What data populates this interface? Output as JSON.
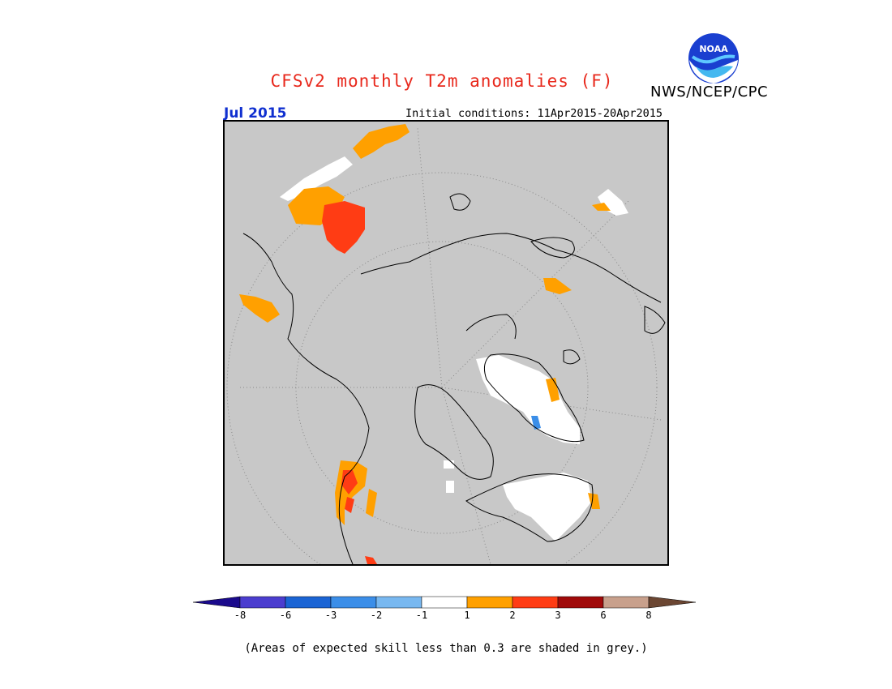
{
  "title": "CFSv2 monthly T2m anomalies (F)",
  "agency": "NWS/NCEP/CPC",
  "logo_text": "NOAA",
  "valid_month": "Jul 2015",
  "initial_conditions": "Initial conditions: 11Apr2015-20Apr2015",
  "footnote": "(Areas of expected skill less than 0.3 are shaded in grey.)",
  "map": {
    "projection": "north-polar-stereographic",
    "background_color": "#c8c8c8",
    "coastline_color": "#000000"
  },
  "legend": {
    "colors": [
      "#1a0a8c",
      "#4b3dcf",
      "#1a64d4",
      "#3b8ee8",
      "#78b8f0",
      "#ffffff",
      "#ffa000",
      "#ff3c14",
      "#a00a0a",
      "#c8a08c",
      "#6b4632"
    ],
    "tick_labels": [
      "-8",
      "-6",
      "-3",
      "-2",
      "-1",
      "1",
      "2",
      "3",
      "6",
      "8"
    ]
  },
  "colors": {
    "title": "#e8281c",
    "month": "#1030d0",
    "anomaly_plus1": "#ffa000",
    "anomaly_plus2": "#ff3c14",
    "near_normal": "#ffffff",
    "anomaly_minus1": "#3b8ee8"
  }
}
